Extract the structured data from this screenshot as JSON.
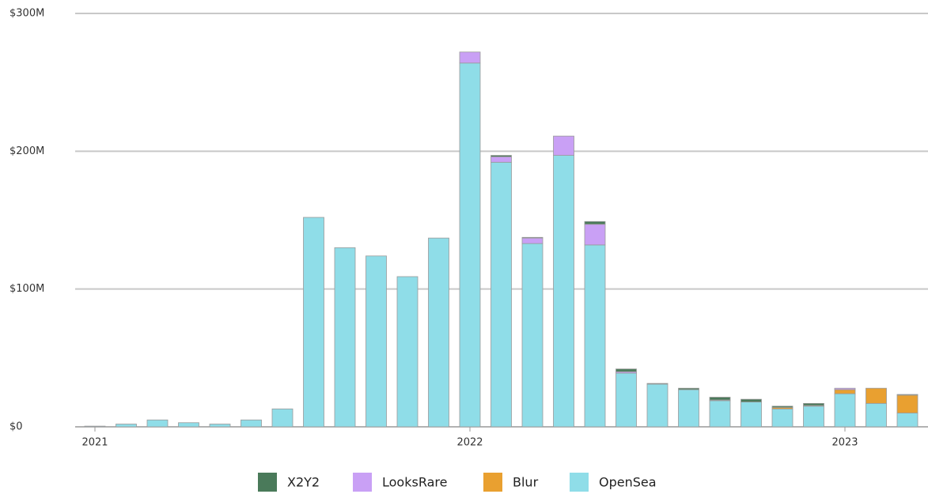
{
  "chart_data": {
    "type": "bar",
    "stacked": true,
    "categories": [
      "2021",
      null,
      null,
      null,
      null,
      null,
      null,
      null,
      null,
      null,
      null,
      null,
      "2022",
      null,
      null,
      null,
      null,
      null,
      null,
      null,
      null,
      null,
      null,
      null,
      "2023",
      null,
      null
    ],
    "series": [
      {
        "name": "X2Y2",
        "color": "#4a7a5a",
        "values": [
          0,
          0,
          0,
          0,
          0,
          0,
          0,
          0,
          0,
          0,
          0,
          0,
          0,
          1,
          0.5,
          0,
          2,
          2,
          0.5,
          1,
          2,
          2,
          1,
          1.5,
          0,
          0,
          0.5
        ]
      },
      {
        "name": "LooksRare",
        "color": "#c9a0f5",
        "values": [
          0,
          0,
          0,
          0,
          0,
          0,
          0,
          0,
          0,
          0,
          0,
          0,
          8,
          4,
          4,
          14,
          15,
          1,
          0,
          0,
          0.5,
          0,
          0,
          0,
          1,
          0,
          0
        ]
      },
      {
        "name": "Blur",
        "color": "#e9a030",
        "values": [
          0,
          0,
          0,
          0,
          0,
          0,
          0,
          0,
          0,
          0,
          0,
          0,
          0,
          0,
          0,
          0,
          0,
          0,
          0,
          0,
          0,
          0,
          1,
          0.5,
          3,
          11,
          13
        ]
      },
      {
        "name": "OpenSea",
        "color": "#8fdde8",
        "values": [
          0.5,
          2,
          5,
          3,
          2,
          5,
          13,
          152,
          130,
          124,
          109,
          137,
          264,
          192,
          133,
          197,
          132,
          39,
          31,
          27,
          19,
          18,
          13,
          15,
          24,
          17,
          10
        ]
      }
    ],
    "ylim": [
      0,
      300
    ],
    "yticks": [
      {
        "value": 0,
        "label": "$0"
      },
      {
        "value": 100,
        "label": "$100M"
      },
      {
        "value": 200,
        "label": "$200M"
      },
      {
        "value": 300,
        "label": "$300M"
      }
    ],
    "grid": true,
    "legend": "bottom"
  }
}
